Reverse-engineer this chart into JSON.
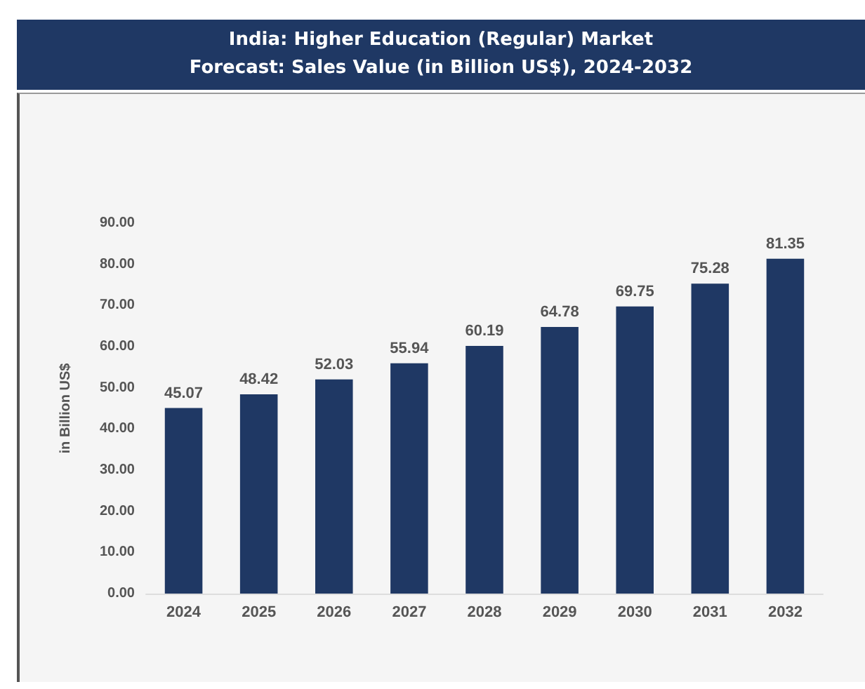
{
  "chart_data": {
    "type": "bar",
    "title": "India: Higher Education (Regular) Market\nForecast: Sales Value (in Billion US$), 2024-2032",
    "ylabel": "in Billion US$",
    "categories": [
      "2024",
      "2025",
      "2026",
      "2027",
      "2028",
      "2029",
      "2030",
      "2031",
      "2032"
    ],
    "values": [
      45.07,
      48.42,
      52.03,
      55.94,
      60.19,
      64.78,
      69.75,
      75.28,
      81.35
    ],
    "color": "#1f3864",
    "ylim": [
      0,
      90
    ],
    "yticks": [
      {
        "value": 0,
        "label": "0.00"
      },
      {
        "value": 10,
        "label": "10.00"
      },
      {
        "value": 20,
        "label": "20.00"
      },
      {
        "value": 30,
        "label": "30.00"
      },
      {
        "value": 40,
        "label": "40.00"
      },
      {
        "value": 50,
        "label": "50.00"
      },
      {
        "value": 60,
        "label": "60.00"
      },
      {
        "value": 70,
        "label": "70.00"
      },
      {
        "value": 80,
        "label": "80.00"
      },
      {
        "value": 90,
        "label": "90.00"
      }
    ],
    "data_labels": true
  }
}
